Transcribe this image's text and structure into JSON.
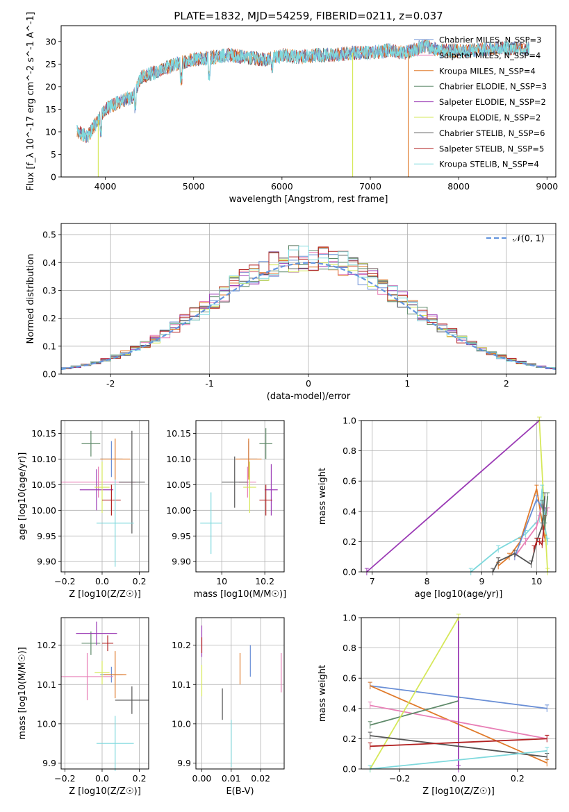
{
  "figure_title": "PLATE=1832, MJD=54259, FIBERID=0211, z=0.037",
  "colors": {
    "chabrier_miles": "#6a8fd6",
    "salpeter_miles": "#e87fb6",
    "kroupa_miles": "#e07a2a",
    "chabrier_elodie": "#5f8a6a",
    "salpeter_elodie": "#9b3bb5",
    "kroupa_elodie": "#d6e85a",
    "chabrier_stelib": "#555555",
    "salpeter_stelib": "#b22222",
    "kroupa_stelib": "#7fd9dd",
    "normal_curve": "#6495de",
    "grid": "#b0b0b0"
  },
  "chart_data": [
    {
      "id": "spectrum",
      "type": "line",
      "title": "PLATE=1832, MJD=54259, FIBERID=0211, z=0.037",
      "xlabel": "wavelength [Angstrom, rest frame]",
      "ylabel": "Flux [f_λ 10^-17 erg cm^-2 s^-1 A^-1]",
      "xlim": [
        3500,
        9100
      ],
      "ylim": [
        0,
        33.5
      ],
      "xticks": [
        4000,
        5000,
        6000,
        7000,
        8000,
        9000
      ],
      "yticks": [
        0,
        5,
        10,
        15,
        20,
        25,
        30
      ],
      "grid": false,
      "legend_position": "top-right",
      "legend": [
        {
          "label": "Chabrier MILES, N_SSP=3",
          "color_key": "chabrier_miles"
        },
        {
          "label": "Salpeter MILES, N_SSP=4",
          "color_key": "salpeter_miles"
        },
        {
          "label": "Kroupa MILES, N_SSP=4",
          "color_key": "kroupa_miles"
        },
        {
          "label": "Chabrier ELODIE, N_SSP=3",
          "color_key": "chabrier_elodie"
        },
        {
          "label": "Salpeter ELODIE, N_SSP=2",
          "color_key": "salpeter_elodie"
        },
        {
          "label": "Kroupa ELODIE, N_SSP=2",
          "color_key": "kroupa_elodie"
        },
        {
          "label": "Chabrier STELIB, N_SSP=6",
          "color_key": "chabrier_stelib"
        },
        {
          "label": "Salpeter STELIB, N_SSP=5",
          "color_key": "salpeter_stelib"
        },
        {
          "label": "Kroupa STELIB, N_SSP=4",
          "color_key": "kroupa_stelib"
        }
      ],
      "continuum": {
        "x": [
          3680,
          3800,
          3900,
          4000,
          4100,
          4200,
          4300,
          4400,
          4600,
          4800,
          5000,
          5200,
          5400,
          5600,
          5800,
          6000,
          6200,
          6400,
          6600,
          6800,
          7000,
          7200,
          7400,
          7600,
          7800,
          8000,
          8200,
          8400,
          8600,
          8800
        ],
        "y": [
          10,
          9,
          12,
          15,
          16,
          17,
          17.5,
          22,
          23.5,
          25,
          26,
          26.5,
          27,
          26.5,
          26,
          27,
          26.5,
          27,
          27,
          27.5,
          27.5,
          28,
          27.5,
          29,
          28,
          28,
          28,
          28.5,
          28.5,
          28.5
        ]
      },
      "dropouts": [
        {
          "x": 3920,
          "y": 0,
          "color_key": "kroupa_elodie"
        },
        {
          "x": 6800,
          "y": 0,
          "color_key": "kroupa_elodie"
        },
        {
          "x": 7430,
          "y": 0,
          "color_key": "kroupa_miles"
        }
      ]
    },
    {
      "id": "residual-histogram",
      "type": "histogram",
      "xlabel": "(data-model)/error",
      "ylabel": "Normed distribution",
      "xlim": [
        -2.5,
        2.5
      ],
      "ylim": [
        0,
        0.54
      ],
      "xticks": [
        -2,
        -1,
        0,
        1,
        2
      ],
      "yticks": [
        0.0,
        0.1,
        0.2,
        0.3,
        0.4,
        0.5
      ],
      "grid": true,
      "legend_position": "top-right",
      "legend": [
        {
          "label": "𝒩(0, 1)",
          "color_key": "normal_curve",
          "style": "dashed"
        }
      ],
      "bin_width": 0.1
    },
    {
      "id": "age-vs-z",
      "type": "errorbar",
      "xlabel": "Z [log10(Z/Z☉)]",
      "ylabel": "age [log10(age/yr)]",
      "xlim": [
        -0.22,
        0.25
      ],
      "ylim": [
        9.88,
        10.175
      ],
      "xticks": [
        -0.2,
        0.0,
        0.2
      ],
      "xtick_labels": [
        "−0.2",
        "0.0",
        "0.2"
      ],
      "yticks": [
        9.9,
        9.95,
        10.0,
        10.05,
        10.1,
        10.15
      ],
      "grid": true,
      "points": [
        {
          "x": 0.05,
          "y": 10.1,
          "xerr": 0.06,
          "yerr": 0.035,
          "color_key": "chabrier_miles"
        },
        {
          "x": -0.02,
          "y": 10.055,
          "xerr": 0.2,
          "yerr": 0.03,
          "color_key": "salpeter_miles"
        },
        {
          "x": 0.07,
          "y": 10.1,
          "xerr": 0.08,
          "yerr": 0.04,
          "color_key": "kroupa_miles"
        },
        {
          "x": -0.06,
          "y": 10.13,
          "xerr": 0.05,
          "yerr": 0.025,
          "color_key": "chabrier_elodie"
        },
        {
          "x": -0.03,
          "y": 10.04,
          "xerr": 0.09,
          "yerr": 0.04,
          "color_key": "salpeter_elodie"
        },
        {
          "x": 0.0,
          "y": 10.045,
          "xerr": 0.04,
          "yerr": 0.05,
          "color_key": "kroupa_elodie"
        },
        {
          "x": 0.16,
          "y": 10.055,
          "xerr": 0.07,
          "yerr": 0.1,
          "color_key": "chabrier_stelib"
        },
        {
          "x": 0.05,
          "y": 10.02,
          "xerr": 0.05,
          "yerr": 0.03,
          "color_key": "salpeter_stelib"
        },
        {
          "x": 0.07,
          "y": 9.975,
          "xerr": 0.1,
          "yerr": 0.085,
          "color_key": "kroupa_stelib"
        }
      ]
    },
    {
      "id": "age-vs-mass",
      "type": "errorbar",
      "xlabel": "mass [log10(M/M☉)]",
      "xlim": [
        9.88,
        10.29
      ],
      "ylim": [
        9.88,
        10.175
      ],
      "xticks": [
        10.0,
        10.2
      ],
      "yticks": [
        9.9,
        9.95,
        10.0,
        10.05,
        10.1,
        10.15
      ],
      "grid": true,
      "points": [
        {
          "x": 10.125,
          "y": 10.1,
          "xerr": 0.04,
          "yerr": 0.035,
          "color_key": "chabrier_miles"
        },
        {
          "x": 10.12,
          "y": 10.055,
          "xerr": 0.04,
          "yerr": 0.03,
          "color_key": "salpeter_miles"
        },
        {
          "x": 10.125,
          "y": 10.1,
          "xerr": 0.06,
          "yerr": 0.04,
          "color_key": "kroupa_miles"
        },
        {
          "x": 10.205,
          "y": 10.13,
          "xerr": 0.03,
          "yerr": 0.03,
          "color_key": "chabrier_elodie"
        },
        {
          "x": 10.23,
          "y": 10.04,
          "xerr": 0.03,
          "yerr": 0.05,
          "color_key": "salpeter_elodie"
        },
        {
          "x": 10.13,
          "y": 10.045,
          "xerr": 0.03,
          "yerr": 0.05,
          "color_key": "kroupa_elodie"
        },
        {
          "x": 10.06,
          "y": 10.055,
          "xerr": 0.06,
          "yerr": 0.05,
          "color_key": "chabrier_stelib"
        },
        {
          "x": 10.205,
          "y": 10.02,
          "xerr": 0.03,
          "yerr": 0.03,
          "color_key": "salpeter_stelib"
        },
        {
          "x": 9.95,
          "y": 9.975,
          "xerr": 0.05,
          "yerr": 0.06,
          "color_key": "kroupa_stelib"
        }
      ]
    },
    {
      "id": "weight-vs-age",
      "type": "line",
      "xlabel": "age [log10(age/yr)]",
      "ylabel": "mass weight",
      "xlim": [
        6.8,
        10.35
      ],
      "ylim": [
        0,
        1.0
      ],
      "xticks": [
        7,
        8,
        9,
        10
      ],
      "yticks": [
        0.0,
        0.2,
        0.4,
        0.6,
        0.8,
        1.0
      ],
      "grid": true,
      "series": [
        {
          "color_key": "salpeter_elodie",
          "x": [
            6.9,
            10.05
          ],
          "y": [
            0.0,
            1.0
          ]
        },
        {
          "color_key": "kroupa_elodie",
          "x": [
            10.05,
            10.2
          ],
          "y": [
            1.0,
            0.0
          ]
        },
        {
          "color_key": "kroupa_stelib",
          "x": [
            8.8,
            9.3,
            9.8,
            10.05,
            10.1,
            10.15,
            10.2
          ],
          "y": [
            0.0,
            0.15,
            0.25,
            0.35,
            0.55,
            0.3,
            0.2
          ]
        },
        {
          "color_key": "kroupa_miles",
          "x": [
            9.3,
            9.5,
            9.7,
            10.0,
            10.15
          ],
          "y": [
            0.04,
            0.1,
            0.2,
            0.55,
            0.22
          ]
        },
        {
          "color_key": "salpeter_miles",
          "x": [
            9.6,
            9.8,
            10.0,
            10.1,
            10.2
          ],
          "y": [
            0.1,
            0.2,
            0.3,
            0.45,
            0.4
          ]
        },
        {
          "color_key": "chabrier_miles",
          "x": [
            9.6,
            10.0,
            10.15
          ],
          "y": [
            0.1,
            0.48,
            0.4
          ]
        },
        {
          "color_key": "chabrier_stelib",
          "x": [
            9.2,
            9.3,
            9.6,
            9.9,
            10.0,
            10.1,
            10.15
          ],
          "y": [
            0.0,
            0.07,
            0.12,
            0.05,
            0.2,
            0.3,
            0.5
          ]
        },
        {
          "color_key": "salpeter_stelib",
          "x": [
            9.95,
            10.0,
            10.05,
            10.1,
            10.15
          ],
          "y": [
            0.15,
            0.2,
            0.2,
            0.18,
            0.35
          ]
        },
        {
          "color_key": "chabrier_elodie",
          "x": [
            10.1,
            10.15,
            10.2
          ],
          "y": [
            0.45,
            0.3,
            0.5
          ]
        }
      ]
    },
    {
      "id": "mass-vs-z",
      "type": "errorbar",
      "xlabel": "Z [log10(Z/Z☉)]",
      "ylabel": "mass [log10(M/M☉)]",
      "xlim": [
        -0.22,
        0.25
      ],
      "ylim": [
        9.885,
        10.27
      ],
      "xticks": [
        -0.2,
        0.0,
        0.2
      ],
      "xtick_labels": [
        "−0.2",
        "0.0",
        "0.2"
      ],
      "yticks": [
        9.9,
        10.0,
        10.1,
        10.2
      ],
      "grid": true,
      "points": [
        {
          "x": 0.05,
          "y": 10.125,
          "xerr": 0.06,
          "yerr": 0.02,
          "color_key": "chabrier_miles"
        },
        {
          "x": -0.08,
          "y": 10.12,
          "xerr": 0.14,
          "yerr": 0.06,
          "color_key": "salpeter_miles"
        },
        {
          "x": 0.07,
          "y": 10.125,
          "xerr": 0.06,
          "yerr": 0.06,
          "color_key": "kroupa_miles"
        },
        {
          "x": -0.06,
          "y": 10.205,
          "xerr": 0.05,
          "yerr": 0.03,
          "color_key": "chabrier_elodie"
        },
        {
          "x": -0.03,
          "y": 10.23,
          "xerr": 0.11,
          "yerr": 0.03,
          "color_key": "salpeter_elodie"
        },
        {
          "x": 0.0,
          "y": 10.13,
          "xerr": 0.04,
          "yerr": 0.03,
          "color_key": "kroupa_elodie"
        },
        {
          "x": 0.16,
          "y": 10.06,
          "xerr": 0.09,
          "yerr": 0.035,
          "color_key": "chabrier_stelib"
        },
        {
          "x": 0.03,
          "y": 10.205,
          "xerr": 0.03,
          "yerr": 0.02,
          "color_key": "salpeter_stelib"
        },
        {
          "x": 0.07,
          "y": 9.95,
          "xerr": 0.1,
          "yerr": 0.07,
          "color_key": "kroupa_stelib"
        }
      ]
    },
    {
      "id": "mass-vs-ebv",
      "type": "errorbar",
      "xlabel": "E(B-V)",
      "xlim": [
        -0.002,
        0.028
      ],
      "ylim": [
        9.885,
        10.27
      ],
      "xticks": [
        0.0,
        0.01,
        0.02
      ],
      "xtick_labels": [
        "0.00",
        "0.01",
        "0.02"
      ],
      "yticks": [
        9.9,
        10.0,
        10.1,
        10.2
      ],
      "grid": true,
      "points": [
        {
          "x": 0.0,
          "y": 10.21,
          "yerr": 0.04,
          "color_key": "salpeter_elodie"
        },
        {
          "x": 0.0,
          "y": 10.2,
          "yerr": 0.02,
          "color_key": "salpeter_stelib"
        },
        {
          "x": 0.0,
          "y": 10.11,
          "yerr": 0.04,
          "color_key": "kroupa_elodie"
        },
        {
          "x": 0.007,
          "y": 10.05,
          "yerr": 0.04,
          "color_key": "chabrier_stelib"
        },
        {
          "x": 0.01,
          "y": 9.95,
          "yerr": 0.06,
          "color_key": "kroupa_stelib"
        },
        {
          "x": 0.013,
          "y": 10.14,
          "yerr": 0.04,
          "color_key": "kroupa_miles"
        },
        {
          "x": 0.0165,
          "y": 10.16,
          "yerr": 0.04,
          "color_key": "chabrier_miles"
        },
        {
          "x": 0.027,
          "y": 10.13,
          "yerr": 0.05,
          "color_key": "salpeter_miles"
        }
      ]
    },
    {
      "id": "weight-vs-z",
      "type": "line",
      "xlabel": "Z [log10(Z/Z☉)]",
      "ylabel": "mass weight",
      "xlim": [
        -0.33,
        0.33
      ],
      "ylim": [
        0,
        1.0
      ],
      "xticks": [
        -0.2,
        0.0,
        0.2
      ],
      "xtick_labels": [
        "−0.2",
        "0.0",
        "0.2"
      ],
      "yticks": [
        0.0,
        0.2,
        0.4,
        0.6,
        0.8,
        1.0
      ],
      "grid": true,
      "series": [
        {
          "color_key": "chabrier_miles",
          "x": [
            -0.3,
            0.3
          ],
          "y": [
            0.55,
            0.4
          ]
        },
        {
          "color_key": "kroupa_miles",
          "x": [
            -0.3,
            0.3
          ],
          "y": [
            0.55,
            0.04
          ]
        },
        {
          "color_key": "salpeter_miles",
          "x": [
            -0.3,
            0.3
          ],
          "y": [
            0.42,
            0.2
          ]
        },
        {
          "color_key": "chabrier_elodie",
          "x": [
            -0.3,
            0.0
          ],
          "y": [
            0.29,
            0.45
          ]
        },
        {
          "color_key": "salpeter_elodie",
          "x": [
            0.0,
            0.0
          ],
          "y": [
            0.0,
            1.0
          ]
        },
        {
          "color_key": "kroupa_elodie",
          "x": [
            -0.3,
            0.0
          ],
          "y": [
            0.0,
            1.0
          ]
        },
        {
          "color_key": "chabrier_stelib",
          "x": [
            -0.3,
            0.3
          ],
          "y": [
            0.22,
            0.08
          ]
        },
        {
          "color_key": "salpeter_stelib",
          "x": [
            -0.3,
            0.3
          ],
          "y": [
            0.15,
            0.2
          ]
        },
        {
          "color_key": "kroupa_stelib",
          "x": [
            -0.3,
            0.3
          ],
          "y": [
            0.0,
            0.12
          ]
        }
      ]
    }
  ]
}
